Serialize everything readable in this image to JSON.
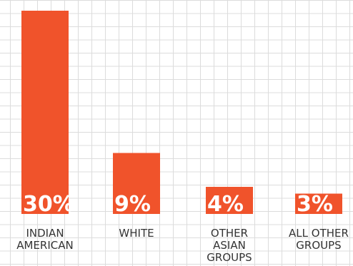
{
  "chart_data": {
    "type": "bar",
    "categories": [
      "INDIAN AMERICAN",
      "WHITE",
      "OTHER ASIAN GROUPS",
      "ALL OTHER GROUPS"
    ],
    "values": [
      30,
      9,
      4,
      3
    ],
    "value_labels": [
      "30%",
      "9%",
      "4%",
      "3%"
    ],
    "color": "#f0532b"
  }
}
